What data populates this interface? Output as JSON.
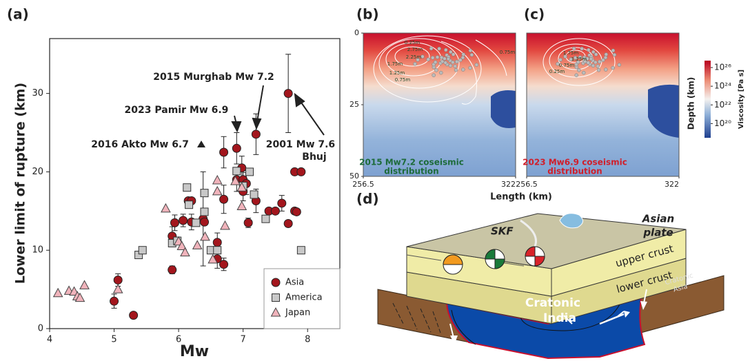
{
  "chart_data": [
    {
      "type": "scatter",
      "panel_label": "(a)",
      "xlabel": "Mw",
      "ylabel": "Lower limit of rupture (km)",
      "xlim": [
        4,
        8.5
      ],
      "xticks": [
        4,
        5,
        6,
        7,
        8
      ],
      "ylim": [
        0,
        37
      ],
      "yticks": [
        0,
        10,
        20,
        30
      ],
      "legend": "lower right",
      "annotations": [
        "2015 Murghab Mw 7.2",
        "2023 Pamir Mw 6.9",
        "2016 Akto Mw 6.7",
        "2001 Mw 7.6",
        "Bhuj"
      ],
      "series": [
        {
          "name": "Asia",
          "color": "#a3161d",
          "marker": "circle",
          "x": [
            5.0,
            5.06,
            5.3,
            5.9,
            5.9,
            5.94,
            6.07,
            6.15,
            6.2,
            6.2,
            6.38,
            6.4,
            6.6,
            6.6,
            6.7,
            6.7,
            6.7,
            6.9,
            6.9,
            6.98,
            7.0,
            7.0,
            7.05,
            7.08,
            7.2,
            7.2,
            7.4,
            7.5,
            7.6,
            7.7,
            7.7,
            7.8,
            7.9,
            7.8,
            7.83
          ],
          "values": [
            3.5,
            6.2,
            1.7,
            7.5,
            11.8,
            13.5,
            13.8,
            16.3,
            16.3,
            13.6,
            14.0,
            13.6,
            11.0,
            8.9,
            22.5,
            16.5,
            8.2,
            23.0,
            19.0,
            20.5,
            17.5,
            19.0,
            18.5,
            13.5,
            24.8,
            16.3,
            15.0,
            15.0,
            16.0,
            13.4,
            30.0,
            20.0,
            20.0,
            15.0,
            14.9
          ],
          "errors": [
            0.9,
            0.8,
            null,
            0.5,
            1.2,
            1,
            0.8,
            null,
            null,
            1,
            6,
            null,
            1.2,
            1.2,
            2,
            1.8,
            0.8,
            2,
            1.5,
            1.5,
            1.2,
            1.5,
            1.4,
            0.6,
            2.6,
            1.5,
            null,
            null,
            1,
            null,
            5,
            null,
            null,
            null,
            null
          ]
        },
        {
          "name": "America",
          "color": "#c8c8c8",
          "marker": "square",
          "x": [
            5.38,
            5.44,
            5.9,
            5.98,
            6.13,
            6.16,
            6.27,
            6.4,
            6.4,
            6.5,
            6.6,
            6.9,
            7.0,
            7.1,
            7.17,
            7.35,
            7.9
          ],
          "values": [
            9.4,
            10.0,
            10.9,
            11.2,
            18.0,
            15.8,
            13.5,
            14.9,
            17.3,
            10.0,
            10.0,
            20.1,
            18.2,
            20.0,
            17.1,
            14.0,
            10.0
          ]
        },
        {
          "name": "Japan",
          "color": "#f0b3bb",
          "marker": "triangle",
          "x": [
            4.13,
            4.3,
            4.38,
            4.43,
            4.47,
            4.54,
            5.06,
            5.8,
            6.0,
            6.05,
            6.1,
            6.29,
            6.41,
            6.53,
            6.6,
            6.6,
            6.72,
            6.88,
            6.98,
            6.98
          ],
          "values": [
            4.5,
            4.8,
            4.7,
            4.1,
            3.9,
            5.5,
            5.0,
            15.3,
            11.1,
            10.5,
            9.7,
            10.6,
            11.7,
            8.8,
            18.9,
            17.5,
            13.1,
            18.8,
            18.0,
            15.6
          ]
        }
      ]
    },
    {
      "type": "map",
      "panel_label": "(b)",
      "xlabel": "Length (km)",
      "ylabel": "Depth (km)",
      "xlim": [
        256.5,
        322
      ],
      "xticks": [
        256.5,
        322
      ],
      "ylim": [
        0,
        50
      ],
      "yticks": [
        0,
        25,
        50
      ],
      "contour_labels": [
        "0.25m",
        "2.75m",
        "2.25m",
        "1.75m",
        "1.25m",
        "0.75m",
        "0.75m"
      ],
      "caption": [
        "2015 Mw7.2 coseismic",
        "distribution"
      ],
      "caption_color": "#1d6b3a"
    },
    {
      "type": "map",
      "panel_label": "(c)",
      "xlim": [
        256.5,
        322
      ],
      "xticks": [
        256.5,
        322
      ],
      "contour_labels": [
        "1.75m",
        "1.25m",
        "0.75m",
        "0.25m"
      ],
      "caption": [
        "2023 Mw6.9 coseismic",
        "distribution"
      ],
      "caption_color": "#d01e2a",
      "colorbar": {
        "label": "Viscosity [Pa s]",
        "log": true,
        "lim": [
          3e+18,
          5.5e+26
        ],
        "ticks": [
          {
            "value": 1e+26,
            "label": "10²⁶"
          },
          {
            "value": 1e+24,
            "label": "10²⁴"
          },
          {
            "value": 1e+22,
            "label": "10²²"
          },
          {
            "value": 1e+20,
            "label": "10²⁰"
          }
        ]
      }
    }
  ],
  "diagram": {
    "panel_label": "(d)",
    "fault": "SKF",
    "plate": [
      "Asian",
      "plate"
    ],
    "upper": "upper crust",
    "lower": "lower crust",
    "india": [
      "Cratonic",
      "India"
    ],
    "asia": [
      "Cratonic",
      "Asia"
    ]
  }
}
